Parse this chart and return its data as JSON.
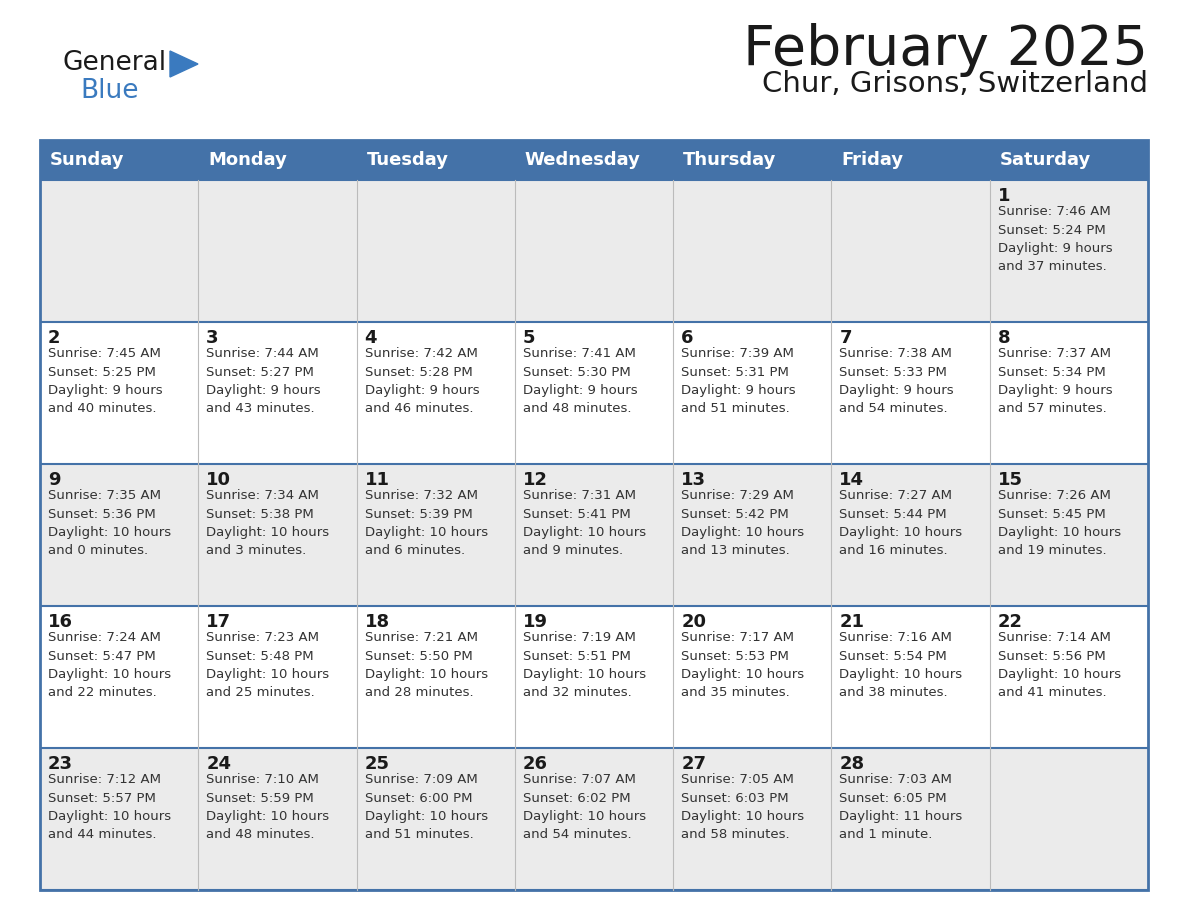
{
  "title": "February 2025",
  "subtitle": "Chur, Grisons, Switzerland",
  "header_color": "#4472a8",
  "header_text_color": "#ffffff",
  "bg_odd": "#ebebeb",
  "bg_even": "#ffffff",
  "border_color": "#4472a8",
  "border_color_row": "#4472a8",
  "text_color": "#333333",
  "day_num_color": "#1a1a1a",
  "logo_general_color": "#1a1a1a",
  "logo_blue_color": "#3a7abf",
  "logo_triangle_color": "#3a7abf",
  "days_of_week": [
    "Sunday",
    "Monday",
    "Tuesday",
    "Wednesday",
    "Thursday",
    "Friday",
    "Saturday"
  ],
  "weeks": [
    [
      {
        "day": "",
        "info": ""
      },
      {
        "day": "",
        "info": ""
      },
      {
        "day": "",
        "info": ""
      },
      {
        "day": "",
        "info": ""
      },
      {
        "day": "",
        "info": ""
      },
      {
        "day": "",
        "info": ""
      },
      {
        "day": "1",
        "info": "Sunrise: 7:46 AM\nSunset: 5:24 PM\nDaylight: 9 hours\nand 37 minutes."
      }
    ],
    [
      {
        "day": "2",
        "info": "Sunrise: 7:45 AM\nSunset: 5:25 PM\nDaylight: 9 hours\nand 40 minutes."
      },
      {
        "day": "3",
        "info": "Sunrise: 7:44 AM\nSunset: 5:27 PM\nDaylight: 9 hours\nand 43 minutes."
      },
      {
        "day": "4",
        "info": "Sunrise: 7:42 AM\nSunset: 5:28 PM\nDaylight: 9 hours\nand 46 minutes."
      },
      {
        "day": "5",
        "info": "Sunrise: 7:41 AM\nSunset: 5:30 PM\nDaylight: 9 hours\nand 48 minutes."
      },
      {
        "day": "6",
        "info": "Sunrise: 7:39 AM\nSunset: 5:31 PM\nDaylight: 9 hours\nand 51 minutes."
      },
      {
        "day": "7",
        "info": "Sunrise: 7:38 AM\nSunset: 5:33 PM\nDaylight: 9 hours\nand 54 minutes."
      },
      {
        "day": "8",
        "info": "Sunrise: 7:37 AM\nSunset: 5:34 PM\nDaylight: 9 hours\nand 57 minutes."
      }
    ],
    [
      {
        "day": "9",
        "info": "Sunrise: 7:35 AM\nSunset: 5:36 PM\nDaylight: 10 hours\nand 0 minutes."
      },
      {
        "day": "10",
        "info": "Sunrise: 7:34 AM\nSunset: 5:38 PM\nDaylight: 10 hours\nand 3 minutes."
      },
      {
        "day": "11",
        "info": "Sunrise: 7:32 AM\nSunset: 5:39 PM\nDaylight: 10 hours\nand 6 minutes."
      },
      {
        "day": "12",
        "info": "Sunrise: 7:31 AM\nSunset: 5:41 PM\nDaylight: 10 hours\nand 9 minutes."
      },
      {
        "day": "13",
        "info": "Sunrise: 7:29 AM\nSunset: 5:42 PM\nDaylight: 10 hours\nand 13 minutes."
      },
      {
        "day": "14",
        "info": "Sunrise: 7:27 AM\nSunset: 5:44 PM\nDaylight: 10 hours\nand 16 minutes."
      },
      {
        "day": "15",
        "info": "Sunrise: 7:26 AM\nSunset: 5:45 PM\nDaylight: 10 hours\nand 19 minutes."
      }
    ],
    [
      {
        "day": "16",
        "info": "Sunrise: 7:24 AM\nSunset: 5:47 PM\nDaylight: 10 hours\nand 22 minutes."
      },
      {
        "day": "17",
        "info": "Sunrise: 7:23 AM\nSunset: 5:48 PM\nDaylight: 10 hours\nand 25 minutes."
      },
      {
        "day": "18",
        "info": "Sunrise: 7:21 AM\nSunset: 5:50 PM\nDaylight: 10 hours\nand 28 minutes."
      },
      {
        "day": "19",
        "info": "Sunrise: 7:19 AM\nSunset: 5:51 PM\nDaylight: 10 hours\nand 32 minutes."
      },
      {
        "day": "20",
        "info": "Sunrise: 7:17 AM\nSunset: 5:53 PM\nDaylight: 10 hours\nand 35 minutes."
      },
      {
        "day": "21",
        "info": "Sunrise: 7:16 AM\nSunset: 5:54 PM\nDaylight: 10 hours\nand 38 minutes."
      },
      {
        "day": "22",
        "info": "Sunrise: 7:14 AM\nSunset: 5:56 PM\nDaylight: 10 hours\nand 41 minutes."
      }
    ],
    [
      {
        "day": "23",
        "info": "Sunrise: 7:12 AM\nSunset: 5:57 PM\nDaylight: 10 hours\nand 44 minutes."
      },
      {
        "day": "24",
        "info": "Sunrise: 7:10 AM\nSunset: 5:59 PM\nDaylight: 10 hours\nand 48 minutes."
      },
      {
        "day": "25",
        "info": "Sunrise: 7:09 AM\nSunset: 6:00 PM\nDaylight: 10 hours\nand 51 minutes."
      },
      {
        "day": "26",
        "info": "Sunrise: 7:07 AM\nSunset: 6:02 PM\nDaylight: 10 hours\nand 54 minutes."
      },
      {
        "day": "27",
        "info": "Sunrise: 7:05 AM\nSunset: 6:03 PM\nDaylight: 10 hours\nand 58 minutes."
      },
      {
        "day": "28",
        "info": "Sunrise: 7:03 AM\nSunset: 6:05 PM\nDaylight: 11 hours\nand 1 minute."
      },
      {
        "day": "",
        "info": ""
      }
    ]
  ]
}
